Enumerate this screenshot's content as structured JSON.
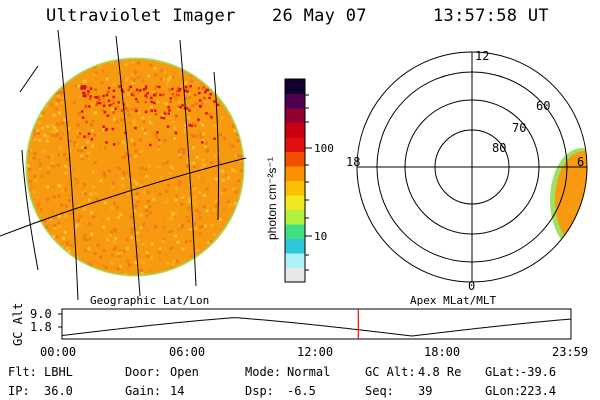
{
  "header": {
    "title": "Ultraviolet Imager",
    "date": "26 May 07",
    "time": "13:57:58 UT"
  },
  "colorbar": {
    "label": "photon cm⁻²s⁻¹",
    "ticks": [
      {
        "value": "100"
      },
      {
        "value": "10"
      }
    ],
    "colors": [
      "#e8e8e8",
      "#b0f0f8",
      "#30c8d8",
      "#40e080",
      "#b0f040",
      "#f0e820",
      "#f8c000",
      "#f89000",
      "#f05000",
      "#e01010",
      "#c80010",
      "#900030",
      "#500050",
      "#100030"
    ]
  },
  "geographic_panel": {
    "label": "Geographic Lat/Lon",
    "disk_color": "#f89a10",
    "edge_color": "#f0d040"
  },
  "apex_panel": {
    "label": "Apex MLat/MLT",
    "mlt_labels": {
      "top": "12",
      "right": "6",
      "bottom": "0",
      "left": "18"
    },
    "lat_labels": [
      "60",
      "70",
      "80"
    ]
  },
  "altitude_plot": {
    "ylabel": "GC Alt",
    "yticks": [
      "9.0",
      "1.8"
    ],
    "xticks": [
      "00:00",
      "06:00",
      "12:00",
      "18:00",
      "23:59"
    ],
    "current_time_hours": 13.97,
    "marker_color": "#ff0000"
  },
  "info_rows": [
    [
      {
        "label": "Flt:",
        "value": "LBHL"
      },
      {
        "label": "Door:",
        "value": "Open"
      },
      {
        "label": "Mode:",
        "value": "Normal"
      },
      {
        "label": "GC Alt:",
        "value": "4.8 Re"
      },
      {
        "label": "GLat:",
        "value": "-39.6"
      }
    ],
    [
      {
        "label": "IP:",
        "value": "36.0"
      },
      {
        "label": "Gain:",
        "value": "14"
      },
      {
        "label": "Dsp:",
        "value": "-6.5"
      },
      {
        "label": "Seq:",
        "value": "39"
      },
      {
        "label": "GLon:",
        "value": "223.4"
      }
    ]
  ]
}
